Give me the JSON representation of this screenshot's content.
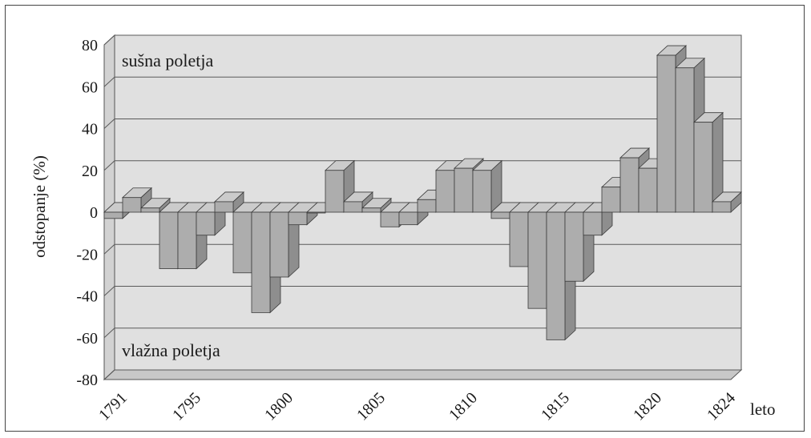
{
  "chart_data": {
    "type": "bar",
    "xlabel": "leto",
    "ylabel": "odstopanje (%)",
    "ylim": [
      -80,
      80
    ],
    "yticks": [
      80,
      60,
      40,
      20,
      0,
      -20,
      -40,
      -60,
      -80
    ],
    "xtick_labels": [
      "1791",
      "1795",
      "1800",
      "1805",
      "1810",
      "1815",
      "1820",
      "1824"
    ],
    "xtick_years": [
      1791,
      1795,
      1800,
      1805,
      1810,
      1815,
      1820,
      1824
    ],
    "annotations": {
      "top": "sušna poletja",
      "bottom": "vlažna poletja"
    },
    "grid": true,
    "x": [
      1791,
      1792,
      1793,
      1794,
      1795,
      1796,
      1797,
      1798,
      1799,
      1800,
      1801,
      1802,
      1803,
      1804,
      1805,
      1806,
      1807,
      1808,
      1809,
      1810,
      1811,
      1812,
      1813,
      1814,
      1815,
      1816,
      1817,
      1818,
      1819,
      1820,
      1821,
      1822,
      1823,
      1824
    ],
    "values": [
      -3,
      7,
      2,
      -27,
      -27,
      -11,
      5,
      -29,
      -48,
      -31,
      -6,
      0,
      20,
      5,
      2,
      -7,
      -6,
      6,
      20,
      21,
      20,
      -3,
      -26,
      -46,
      -61,
      -33,
      -11,
      12,
      26,
      21,
      75,
      69,
      43,
      5
    ],
    "colors": {
      "front": "#adadad",
      "side": "#8e8e8e",
      "top": "#cbcbcb",
      "back_wall": "#e0e0e0",
      "floor": "#c8c8c8"
    }
  }
}
